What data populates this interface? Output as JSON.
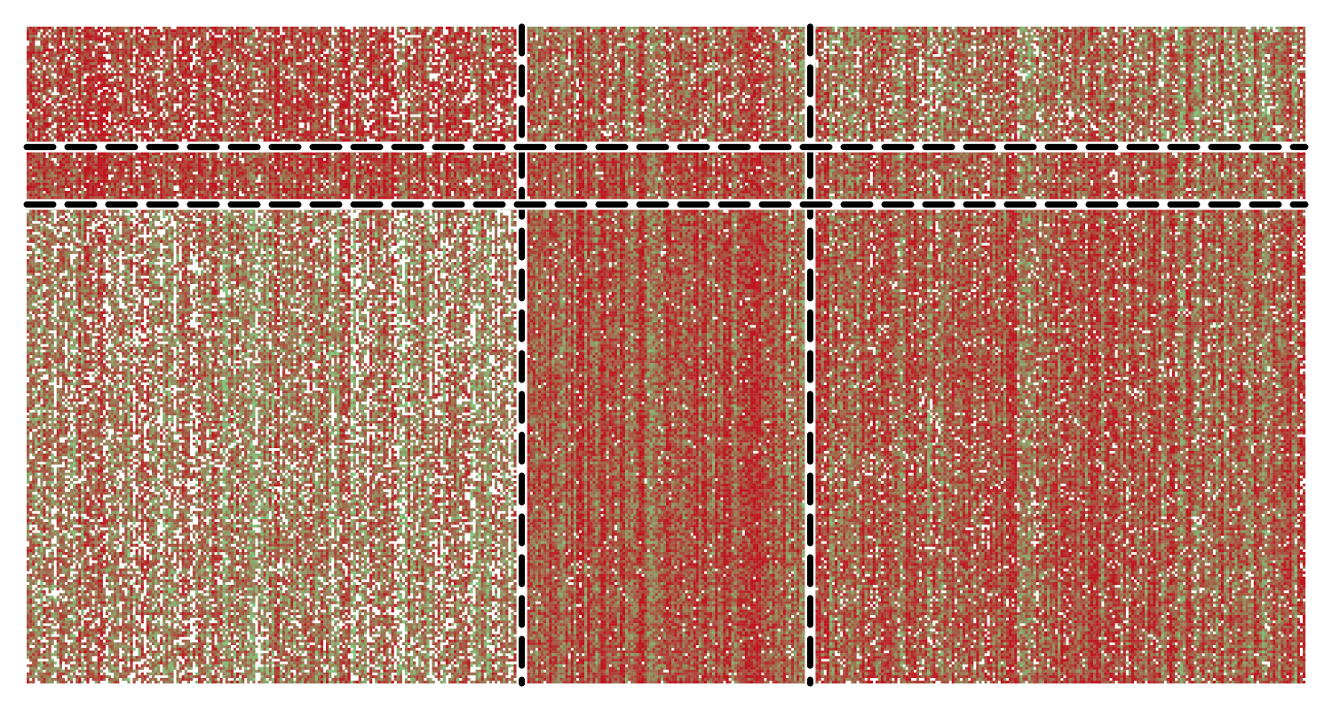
{
  "chart_data": {
    "type": "heatmap",
    "title": "",
    "xlabel": "",
    "ylabel": "",
    "n_rows": 240,
    "n_cols": 470,
    "axes_visible": false,
    "colorbar": false,
    "colors": {
      "low": "#7fc97f",
      "high": "#c0141f",
      "missing": "#ffffff",
      "separator": "#000000"
    },
    "column_groups": [
      {
        "start": 0,
        "end": 182
      },
      {
        "start": 182,
        "end": 288
      },
      {
        "start": 288,
        "end": 470
      }
    ],
    "row_groups": [
      {
        "start": 0,
        "end": 44
      },
      {
        "start": 44,
        "end": 65
      },
      {
        "start": 65,
        "end": 240
      }
    ],
    "separators": {
      "style": "dashed",
      "col_boundaries": [
        182,
        288
      ],
      "row_boundaries": [
        44,
        65
      ]
    },
    "block_mean": [
      [
        0.72,
        0.6,
        0.5
      ],
      [
        0.74,
        0.7,
        0.6
      ],
      [
        0.48,
        0.66,
        0.62
      ]
    ],
    "block_missing_rate": [
      [
        0.22,
        0.14,
        0.18
      ],
      [
        0.1,
        0.05,
        0.1
      ],
      [
        0.3,
        0.04,
        0.1
      ]
    ]
  }
}
